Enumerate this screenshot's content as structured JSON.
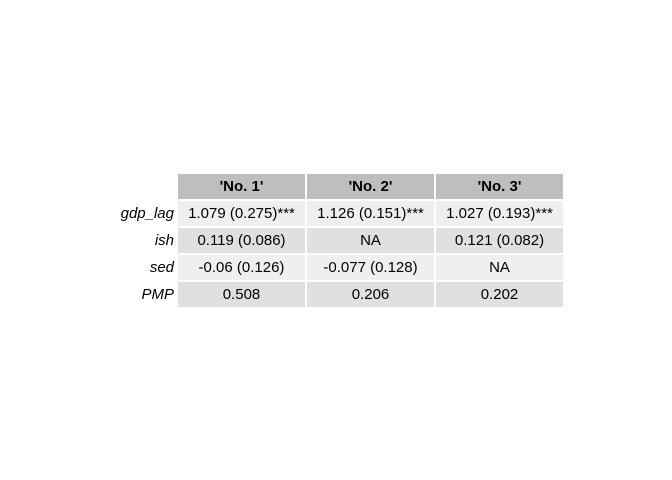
{
  "table": {
    "columns": [
      "'No. 1'",
      "'No. 2'",
      "'No. 3'"
    ],
    "rows": [
      {
        "label": "gdp_lag",
        "cells": [
          "1.079 (0.275)***",
          "1.126 (0.151)***",
          "1.027 (0.193)***"
        ]
      },
      {
        "label": "ish",
        "cells": [
          "0.119 (0.086)",
          "NA",
          "0.121 (0.082)"
        ]
      },
      {
        "label": "sed",
        "cells": [
          "-0.06 (0.126)",
          "-0.077 (0.128)",
          "NA"
        ]
      },
      {
        "label": "PMP",
        "cells": [
          "0.508",
          "0.206",
          "0.202"
        ]
      }
    ]
  },
  "colors": {
    "header": "#bebebe",
    "row_light": "#efefef",
    "row_dark": "#e0e0e0"
  }
}
